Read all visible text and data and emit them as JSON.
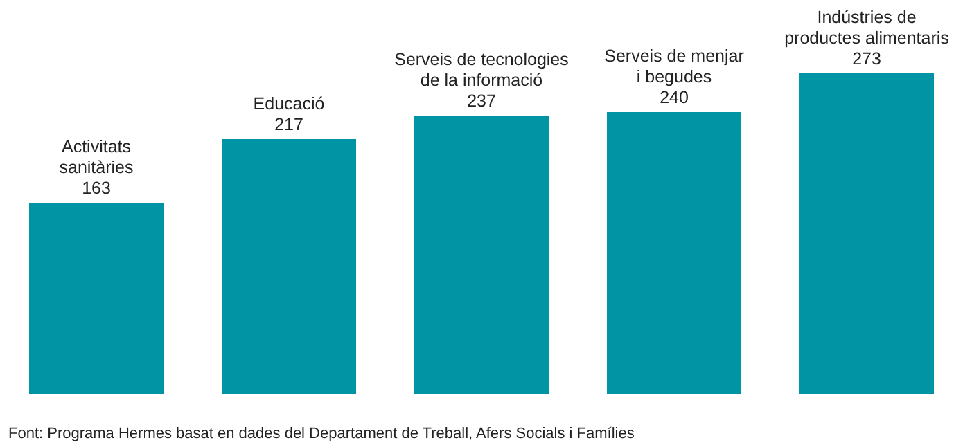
{
  "chart_data": {
    "type": "bar",
    "categories": [
      "Activitats\nsanitàries",
      "Educació",
      "Serveis de tecnologies\nde la informació",
      "Serveis de menjar\ni begudes",
      "Indústries de\nproductes alimentaris"
    ],
    "values": [
      163,
      217,
      237,
      240,
      273
    ],
    "color": "#0094a4",
    "data_labels": true,
    "annotations": [
      "Font: Programa Hermes basat en dades del Departament de Treball, Afers Socials i Famílies"
    ]
  }
}
